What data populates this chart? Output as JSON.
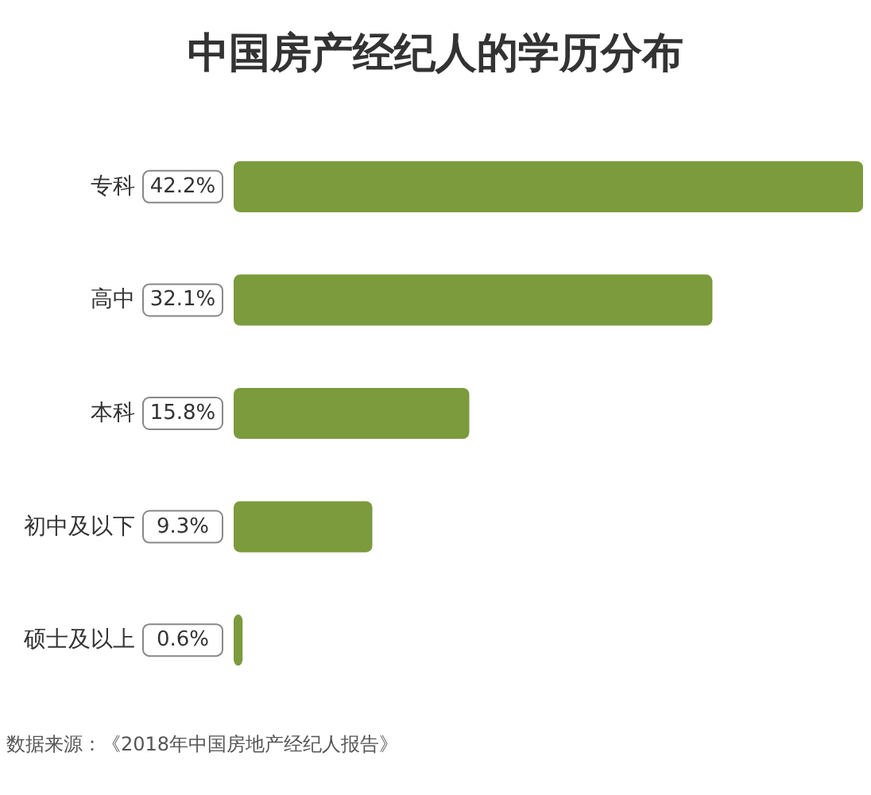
{
  "chart_data": {
    "type": "bar",
    "orientation": "horizontal",
    "title": "中国房产经纪人的学历分布",
    "categories": [
      "专科",
      "高中",
      "本科",
      "初中及以下",
      "硕士及以上"
    ],
    "values": [
      42.2,
      32.1,
      15.8,
      9.3,
      0.6
    ],
    "value_labels": [
      "42.2%",
      "32.1%",
      "15.8%",
      "9.3%",
      "0.6%"
    ],
    "color": "#7b9b3c",
    "annotations": [
      "数据来源：《2018年中国房地产经纪人报告》"
    ]
  }
}
